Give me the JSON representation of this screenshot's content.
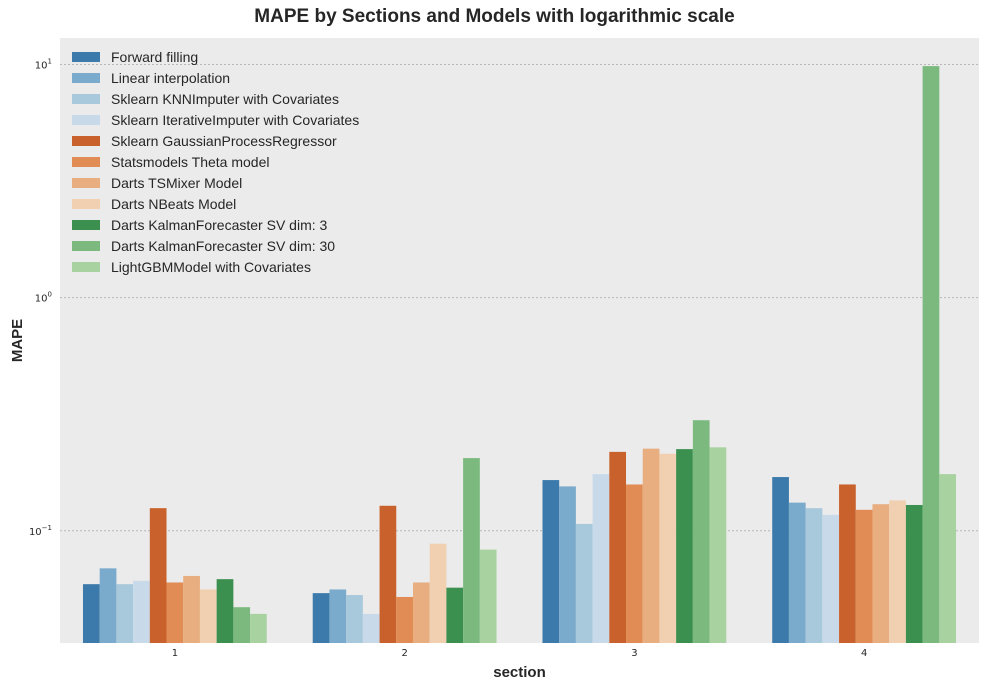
{
  "chart_data": {
    "type": "bar",
    "title": "MAPE by Sections and Models with logarithmic scale",
    "xlabel": "section",
    "ylabel": "MAPE",
    "yscale": "log",
    "ylim": [
      0.033,
      13.0
    ],
    "yticks": [
      {
        "value": 0.1,
        "base": "10",
        "exp": "−1"
      },
      {
        "value": 1,
        "base": "10",
        "exp": "0"
      },
      {
        "value": 10,
        "base": "10",
        "exp": "1"
      }
    ],
    "grid": true,
    "legend_position": "top-left",
    "categories": [
      "1",
      "2",
      "3",
      "4"
    ],
    "series": [
      {
        "name": "Forward filling",
        "color": "#3c7aab",
        "values": [
          0.059,
          0.054,
          0.165,
          0.17
        ]
      },
      {
        "name": "Linear interpolation",
        "color": "#7aaacc",
        "values": [
          0.069,
          0.056,
          0.155,
          0.132
        ]
      },
      {
        "name": "Sklearn KNNImputer with Covariates",
        "color": "#a8c8dc",
        "values": [
          0.059,
          0.053,
          0.107,
          0.125
        ]
      },
      {
        "name": "Sklearn IterativeImputer with Covariates",
        "color": "#c8daea",
        "values": [
          0.061,
          0.044,
          0.175,
          0.117
        ]
      },
      {
        "name": "Sklearn GaussianProcessRegressor",
        "color": "#c8612c",
        "values": [
          0.125,
          0.128,
          0.218,
          0.158
        ]
      },
      {
        "name": "Statsmodels Theta model",
        "color": "#e28c55",
        "values": [
          0.06,
          0.052,
          0.158,
          0.123
        ]
      },
      {
        "name": "Darts TSMixer Model",
        "color": "#e8ae80",
        "values": [
          0.064,
          0.06,
          0.225,
          0.13
        ]
      },
      {
        "name": "Darts NBeats Model",
        "color": "#f0d0b0",
        "values": [
          0.056,
          0.088,
          0.214,
          0.135
        ]
      },
      {
        "name": "Darts KalmanForecaster SV dim: 3",
        "color": "#3b904f",
        "values": [
          0.062,
          0.057,
          0.224,
          0.129
        ]
      },
      {
        "name": "Darts KalmanForecaster SV dim: 30",
        "color": "#7cb97e",
        "values": [
          0.047,
          0.205,
          0.298,
          9.85
        ]
      },
      {
        "name": "LightGBMModel with Covariates",
        "color": "#a8d2a0",
        "values": [
          0.044,
          0.083,
          0.228,
          0.175
        ]
      }
    ]
  }
}
